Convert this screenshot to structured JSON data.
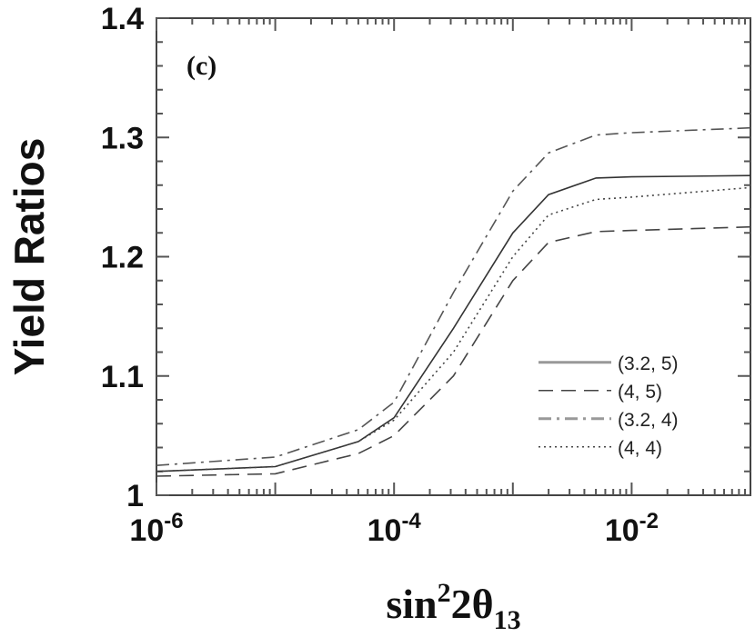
{
  "chart_data": {
    "type": "line",
    "panel_label": "(c)",
    "xlabel": "sin²2θ₁₃",
    "xlabel_parts": {
      "base": "sin",
      "sup": "2",
      "mid": "2θ",
      "sub": "13"
    },
    "ylabel": "Yield Ratios",
    "xscale": "log",
    "xlim": [
      1e-06,
      0.1
    ],
    "ylim": [
      1.0,
      1.4
    ],
    "x_ticks": [
      {
        "base": "10",
        "exp": "-6",
        "value": 1e-06
      },
      {
        "base": "10",
        "exp": "-4",
        "value": 0.0001
      },
      {
        "base": "10",
        "exp": "-2",
        "value": 0.01
      }
    ],
    "y_ticks": [
      "1",
      "1.1",
      "1.2",
      "1.3",
      "1.4"
    ],
    "y_tick_values": [
      1.0,
      1.1,
      1.2,
      1.3,
      1.4
    ],
    "legend_position": "center-right",
    "x_log10": [
      -6,
      -5,
      -4.3,
      -4,
      -3.5,
      -3,
      -2.7,
      -2.3,
      -2,
      -1
    ],
    "series": [
      {
        "name": "(3.2, 5)",
        "style": "solid",
        "values": [
          1.02,
          1.024,
          1.045,
          1.065,
          1.14,
          1.22,
          1.252,
          1.266,
          1.267,
          1.268
        ]
      },
      {
        "name": "(4, 5)",
        "style": "dashed",
        "values": [
          1.016,
          1.018,
          1.035,
          1.05,
          1.1,
          1.18,
          1.212,
          1.221,
          1.222,
          1.225
        ]
      },
      {
        "name": "(3.2, 4)",
        "style": "dashdot",
        "values": [
          1.025,
          1.032,
          1.055,
          1.078,
          1.17,
          1.255,
          1.287,
          1.302,
          1.304,
          1.308
        ]
      },
      {
        "name": "(4, 4)",
        "style": "dotted",
        "values": [
          1.02,
          1.024,
          1.045,
          1.063,
          1.12,
          1.2,
          1.235,
          1.248,
          1.25,
          1.258
        ]
      }
    ]
  }
}
